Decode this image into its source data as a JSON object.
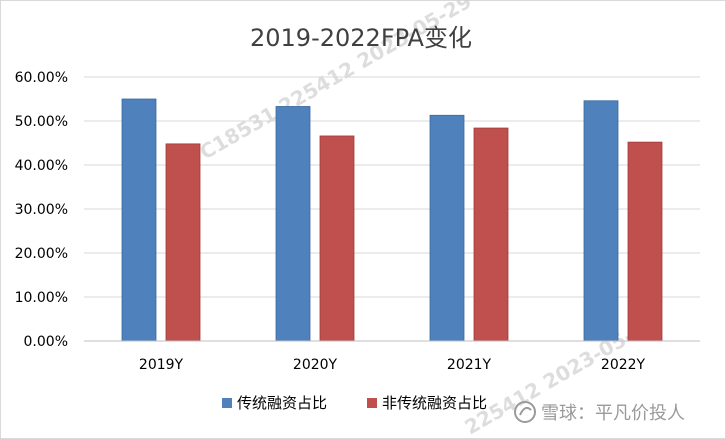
{
  "chart_data": {
    "type": "bar",
    "title": "2019-2022FPA变化",
    "categories": [
      "2019Y",
      "2020Y",
      "2021Y",
      "2022Y"
    ],
    "series": [
      {
        "name": "传统融资占比",
        "values": [
          55.0,
          53.3,
          51.3,
          54.6
        ],
        "color": "#4F81BD"
      },
      {
        "name": "非传统融资占比",
        "values": [
          44.8,
          46.6,
          48.4,
          45.2
        ],
        "color": "#C0504D"
      }
    ],
    "ylim": [
      0,
      60
    ],
    "yticks": [
      "0.00%",
      "10.00%",
      "20.00%",
      "30.00%",
      "40.00%",
      "50.00%",
      "60.00%"
    ],
    "ytick_values": [
      0,
      10,
      20,
      30,
      40,
      50,
      60
    ],
    "grid": true,
    "legend": "bottom"
  },
  "watermark": {
    "text": "雪球：平凡价投人",
    "icon": "snowball-logo-icon",
    "faint_lines": [
      "C18531 225412 2023-05-29",
      "225412 2023-05-29"
    ]
  }
}
